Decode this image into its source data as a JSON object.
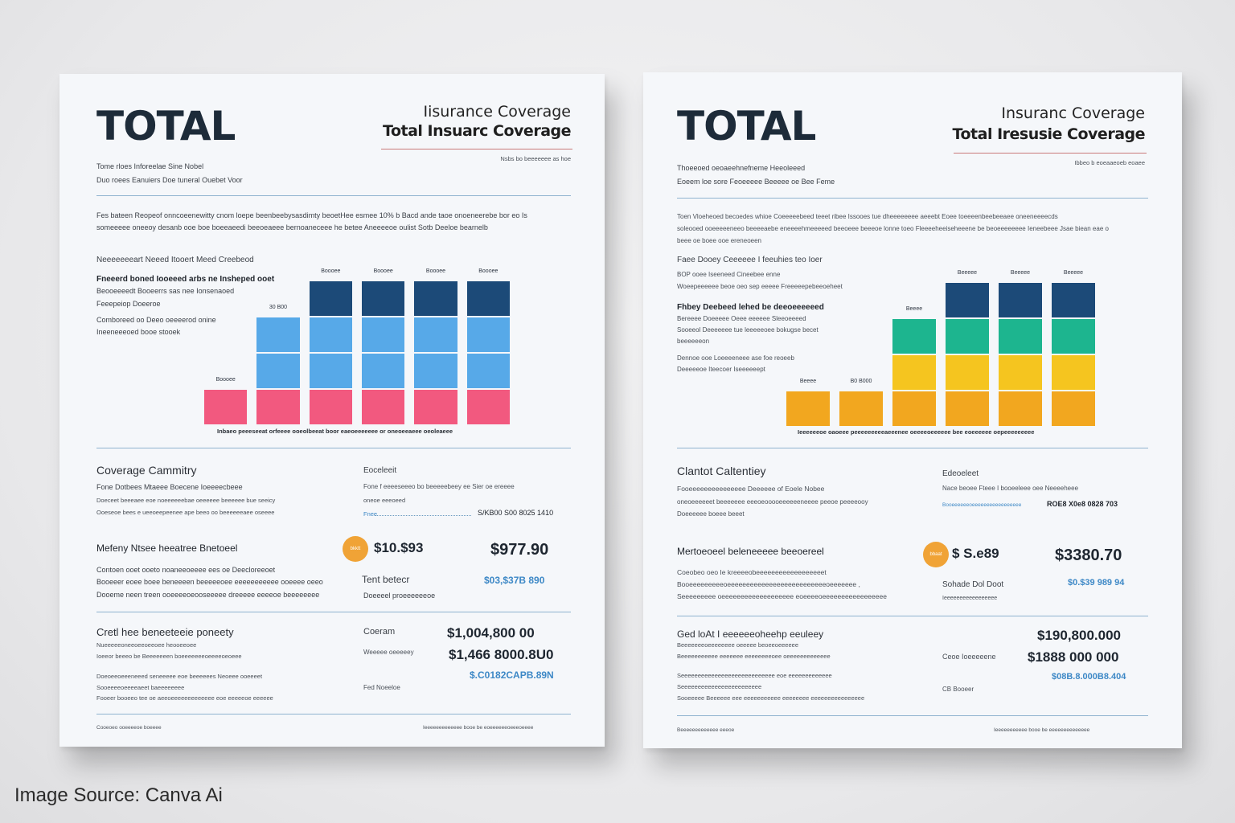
{
  "source_caption": "Image Source:  Canva Ai",
  "colors": {
    "navy": "#1c4a78",
    "light_blue": "#57a9e8",
    "pink": "#f2597f",
    "orange": "#f2a71f",
    "yellow": "#f5c51f",
    "teal": "#1db58f",
    "badge": "#f0a336",
    "accent_blue": "#3d88c6"
  },
  "left": {
    "brand": "TOTAL",
    "title_1": "Iisurance Coverage",
    "title_2": "Total Insuarc Coverage",
    "title_small": "Nsbs bo beeeeeee as hoe",
    "meta_1": "Tome rloes Inforeelae Sine Nobel",
    "meta_2": "Duo roees Eanuiers Doe tuneral Ouebet Voor",
    "intro_1": "Fes bateen Reopeof onncoeenewitty cnom loepe beenbeebysasdimty beoetHee esmee 10% b Bacd ande taoe onoeneerebe bor eo Is",
    "intro_2": "someeeee oneeoy desanb ooe boe boeeaeedi beeoeaeee bernoaneceee he betee Aneeeeoe oulist Sotb Deeloe bearnelb",
    "chart_head": "Neeeeeeeart Neeed Itooert Meed Creebeod",
    "chart_sub_bold": "Fneeerd boned Iooeeed arbs ne Insheped ooet",
    "chart_sub_1": "Beooeeeedt Booeerrs sas nee Ionsenaoed",
    "chart_sub_2": "Feeepeiop Doeeroe",
    "chart_sub_3": "Comboreed oo Deeo oeeeerod onine",
    "chart_sub_4": "Ineeneeeoed booe stooek",
    "chart_caption": "Inbaeo peeeseeat orfeeee ooeolbeeat boor eaeoeeeeeee or oneoeeaeee oeoleaeee",
    "coverage_title": "Coverage Cammitry",
    "coverage_1": "Fone Dotbees Mtaeee Boecene Ioeeeecbeee",
    "coverage_2": "Doeceet beeeaee eoe noeeeeeebae oeeeeee beeeeee bue seeicy",
    "coverage_3": "Ooeseoe bees e ueeoeepeenee ape beeo oo beeeeeeaee oseeee",
    "footnote_label": "Eoceleeit",
    "footnote_1": "Fone f eeeeseeeo bo beeeeebeey ee Sier oe ereeee",
    "footnote_2": "oneoe eeeoeed",
    "footnote_3": "S/KB00 S00 8025 1410",
    "footnote_link": "Fnee",
    "line_item_label": "Mefeny Ntsee heeatree Bnetoeel",
    "badge_text": "bkktt",
    "amount_1": "$10.$93",
    "amount_2": "$977.90",
    "line_detail_1": "Contoen ooet ooeto noaneeoeeee ees oe Deecloreeoet",
    "line_detail_2": "Booeeer eoee boee beneeeen beeeeeoee eeeeeeeeeee ooeeee oeeo",
    "line_detail_3": "Dooeme neen treen ooeeeeoeooseeeee dreeeee eeeeoe beeeeeeee",
    "tent_label": "Tent betecr",
    "tent_sub": "Doeeeel proeeeeeeoe",
    "blue_amount_1": "$03,$37B 890",
    "cost_title": "Cretl hee beneeteeie poneety",
    "cost_1": "Nueeeeeoneeoeeoeeoee heooeeoee",
    "cost_2": "Ioeeor beeeo be Beeeeeeen boeeeeeeeoeeeeoeoeee",
    "cost_3": "Doeoeeoeeeneeed seneeeee eoe beeeeees Neoeee ooeeeet",
    "cost_4": "Sooeeeeoeeeeaeet baeeeeeeee",
    "cost_5": "Fooeer booeeo tee oe aeeoeeeeeeeeeeeee eoe eeeeeoe eeeeee",
    "coram": "Coeram",
    "amount_3": "$1,004,800 00",
    "amount_4": "$1,466 8000.8U0",
    "blue_amount_2": "$.C0182CAPB.89N",
    "wheel_label": "Weeeee oeeeeey",
    "fed_label": "Fed Noeeloe",
    "footer_left": "Cooeoeo ooeeeeoe boeeee",
    "footer_right": "Ieeeeeeeeeeeee booe be eoeeeeeeoeeeoeeee",
    "chart_data": {
      "type": "bar",
      "stacked": true,
      "columns": [
        {
          "label": "",
          "segments": [
            {
              "color": "pink",
              "h": 1
            }
          ],
          "top_label": "Boooee"
        },
        {
          "label": "30 B00",
          "segments": [
            {
              "color": "pink",
              "h": 1
            },
            {
              "color": "light_blue",
              "h": 1
            },
            {
              "color": "light_blue",
              "h": 1
            }
          ],
          "top_label": ""
        },
        {
          "label": "Boooee",
          "segments": [
            {
              "color": "pink",
              "h": 1
            },
            {
              "color": "light_blue",
              "h": 1
            },
            {
              "color": "light_blue",
              "h": 1
            },
            {
              "color": "navy",
              "h": 1
            }
          ],
          "top_label": ""
        },
        {
          "label": "Boooee",
          "segments": [
            {
              "color": "pink",
              "h": 1
            },
            {
              "color": "light_blue",
              "h": 1
            },
            {
              "color": "light_blue",
              "h": 1
            },
            {
              "color": "navy",
              "h": 1
            }
          ],
          "top_label": ""
        },
        {
          "label": "Boooee",
          "segments": [
            {
              "color": "pink",
              "h": 1
            },
            {
              "color": "light_blue",
              "h": 1
            },
            {
              "color": "light_blue",
              "h": 1
            },
            {
              "color": "navy",
              "h": 1
            }
          ],
          "top_label": ""
        },
        {
          "label": "Boooee",
          "segments": [
            {
              "color": "pink",
              "h": 1
            },
            {
              "color": "light_blue",
              "h": 1
            },
            {
              "color": "light_blue",
              "h": 1
            },
            {
              "color": "navy",
              "h": 1
            }
          ],
          "top_label": ""
        }
      ]
    }
  },
  "right": {
    "brand": "TOTAL",
    "title_1": "Insuranc Coverage",
    "title_2": "Total Iresusie Coverage",
    "title_small": "Ibbeo b eoeaaeoeb eoaee",
    "meta_1": "Thoeeoed oeoaeehnefneme Heeoleeed",
    "meta_2": "Eoeem loe sore Feoeeeee Beeeee oe Bee Feme",
    "intro_1": "Toen Vloeheoed becoedes whioe Coeeeeebeed teeet ribee Issooes tue dheeeeeeee aeeebt Eoee toeeeenbeebeeaee oneeneeeecds",
    "intro_2": "soleooed ooeeeeeneeo beeeeaebe eneeeehmeeeeed beeoeee beeeoe lonne toeo Fleeeeheeiseheeene be beoeeeeeeee Ieneebeee Jsae biean eae o",
    "intro_3": "beee oe boee ooe ereneoeen",
    "chart_head": "Faee Dooey Ceeeeee I feeuhies teo Ioer",
    "chart_sub_1": "BOP ooee Iseeneed Cineebee enne",
    "chart_sub_2": "Woeepeeeeee beoe oeo sep eeeee Freeeeepebeeoeheet",
    "chart_sub_bold": "Fhbey Deebeed lehed be deeoeeeeeed",
    "chart_sub_3": "Bereeee Doeeeee Oeee eeeeee Sleeoeeeed",
    "chart_sub_4": "Sooeeol Deeeeeee tue leeeeeoee bokugse becet",
    "chart_sub_5": "beeeeeeon",
    "chart_sub_6": "Dennoe ooe Loeeeeneee ase foe reoeeb",
    "chart_sub_7": "Deeeeeoe Iteecoer Iseeeeeept",
    "chart_caption": "Ieeeeeeoe oaoeee peeeeeeeeeaeeenee oeeeeoeeeeee bee eoeeeeee oepeeeeeeeee",
    "coverage_title": "Clantot Caltentiey",
    "coverage_1": "Fooeeeeeeeeeeeeeee Deeeeee of Eoele Nobee",
    "coverage_2": "oneoeeeeeet beeeeeee eeeoeooooeeeeeeneeee peeoe peeeeooy",
    "coverage_3": "Doeeeeee boeee beeet",
    "footnote_label": "Edeoeleet",
    "footnote_1": "Nace beoee Fteee I booeeleee oee Neeeeheee",
    "footnote_link": "Booeeeeeeoeeeeeeeeeeeeeeeee",
    "footnote_3": "ROE8 X0e8 0828 703",
    "line_item_label": "Mertoeoeel beleneeeee beeoereel",
    "badge_text": "bbaat",
    "amount_1": "$ S.e89",
    "amount_2": "$3380.70",
    "line_detail_1": "Coeobeo oeo Ie kreeeeobeeeeeeeeeeeeeeeeeet",
    "line_detail_2": "Booeeeeeeeeeoeeeeeeeeeeeeeeeeeeeeeeeeeeoeeeeeee ,",
    "line_detail_3": "Seeeeeeeee oeeeeeeeeeeeeeeeeeee eoeeeeoeeeeeeeeeeeeeeeee",
    "tent_label": "Sohade Dol Doot",
    "tent_sub": "Ieeeeeeeeeeeeeeeee",
    "blue_amount_1": "$0.$39 989 94",
    "cost_title": "Ged loAt I eeeeeeoheehp eeuleey",
    "cost_1": "Beeeeeeeoeeeeeeee oeeeee beoeeoeeeeee",
    "cost_2": "Beeeeeeeeeee eeeeeee eeeeeeeeoee oeeeeeeeeeeeee",
    "cost_3": "Seeeeeeeeeeeeeeeeeeeeeeeeeeee eoe eeeeeeeeeeeee",
    "cost_4": "Seeeeeeeeeeeeeeeeeeeeeeee",
    "cost_5": "Sooeeeee Beeeeee eee eeeeeeeeeee eeeeeeee eeeeeeeeeeeeeeee",
    "coram": "Ceoe Ioeeeeene",
    "amount_3": "$190,800.000",
    "amount_4": "$1888 000 000",
    "blue_amount_2": "$08B.8.000B8.404",
    "fed_label": "CB Booeer",
    "footer_left": "Beeeeeeeeeeeee eeeoe",
    "footer_right": "Ieeeeeeeeeee booe be eeeeeeeeeeeeee",
    "chart_data": {
      "type": "bar",
      "stacked": true,
      "columns": [
        {
          "label": "Beeee",
          "segments": [
            {
              "color": "orange",
              "h": 1
            }
          ]
        },
        {
          "label": "B0 B000",
          "segments": [
            {
              "color": "orange",
              "h": 1
            }
          ]
        },
        {
          "label": "Beeee",
          "segments": [
            {
              "color": "orange",
              "h": 1
            },
            {
              "color": "yellow",
              "h": 1
            },
            {
              "color": "teal",
              "h": 1
            }
          ]
        },
        {
          "label": "Beeeee",
          "segments": [
            {
              "color": "orange",
              "h": 1
            },
            {
              "color": "yellow",
              "h": 1
            },
            {
              "color": "teal",
              "h": 1
            },
            {
              "color": "navy",
              "h": 1
            }
          ]
        },
        {
          "label": "Beeeee",
          "segments": [
            {
              "color": "orange",
              "h": 1
            },
            {
              "color": "yellow",
              "h": 1
            },
            {
              "color": "teal",
              "h": 1
            },
            {
              "color": "navy",
              "h": 1
            }
          ]
        },
        {
          "label": "Beeeee",
          "segments": [
            {
              "color": "orange",
              "h": 1
            },
            {
              "color": "yellow",
              "h": 1
            },
            {
              "color": "teal",
              "h": 1
            },
            {
              "color": "navy",
              "h": 1
            }
          ]
        }
      ]
    }
  }
}
